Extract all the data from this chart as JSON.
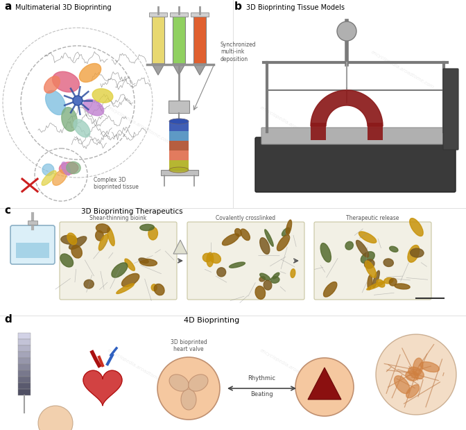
{
  "bg": "#ffffff",
  "panel_a_label": "a",
  "panel_b_label": "b",
  "panel_c_label": "c",
  "panel_d_label": "d",
  "panel_a_title": "Multimaterial 3D Bioprinting",
  "panel_b_title": "3D Bioprinting Tissue Models",
  "panel_c_title": "3D Bioprinting Therapeutics",
  "panel_d_title": "4D Bioprinting",
  "sync_label": "Synchronized\nmulti-ink\ndeposition",
  "complex_label": "Complex 3D\nbioprinted tissue",
  "c_label1": "Shear-thinning bioink",
  "c_label2": "Covalently crosslinked",
  "c_label3": "Therapeutic release",
  "d_label1": "3D bioprinted\nheart valve",
  "d_label2": "Rhythmic",
  "d_label3": "Beating",
  "cell_colors_a": [
    "#e06080",
    "#f0a040",
    "#80c0e0",
    "#c080d0",
    "#80b080",
    "#e0d040",
    "#f08060",
    "#a0d0c0"
  ],
  "syringe_colors": [
    "#e8d870",
    "#90d060",
    "#e06030"
  ],
  "extrude_colors": [
    "#3050b0",
    "#5090c0",
    "#b05030",
    "#e07050",
    "#b0b020"
  ],
  "bacteria_colors": [
    "#8b5e10",
    "#c8930a",
    "#7a5a20",
    "#556b2f"
  ],
  "printer_dark": "#3a3a3a",
  "printer_mid": "#7a7a7a",
  "printer_light": "#b0b0b0",
  "arch_color": "#8b1a1a",
  "heart_color": "#cc2020",
  "valve_bg": "#f5c8a0",
  "valve_dark": "#c09070",
  "sphere_bg": "#f0d5b8",
  "sphere_line": "#c08050",
  "wm_color": "#999999",
  "wm_alpha": 0.18
}
